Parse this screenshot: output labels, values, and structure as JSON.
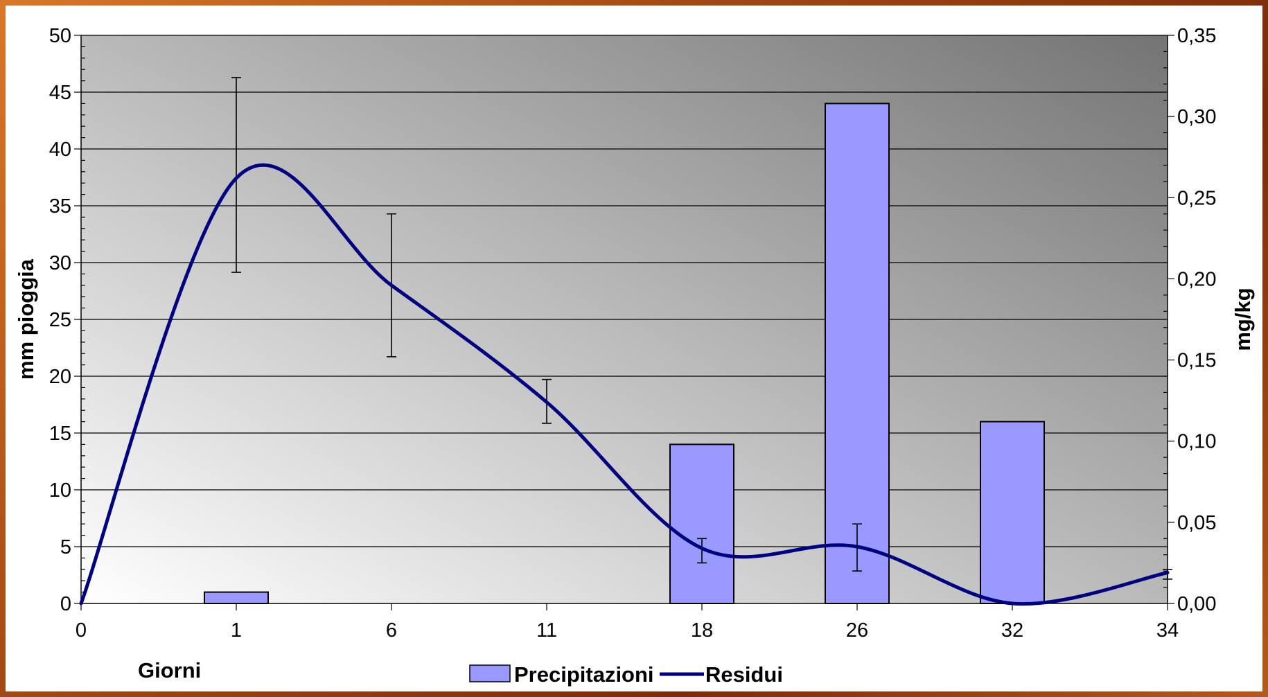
{
  "chart_data": {
    "type": "bar",
    "x_label": "Giorni",
    "categories": [
      "0",
      "1",
      "6",
      "11",
      "18",
      "26",
      "32",
      "34"
    ],
    "y_left_label": "mm pioggia",
    "y_left_ticks": [
      "0",
      "5",
      "10",
      "15",
      "20",
      "25",
      "30",
      "35",
      "40",
      "45",
      "50"
    ],
    "y_left_range": [
      0,
      50
    ],
    "y_right_label": "mg/kg",
    "y_right_ticks": [
      "0,00",
      "0,05",
      "0,10",
      "0,15",
      "0,20",
      "0,25",
      "0,30",
      "0,35"
    ],
    "y_right_range": [
      0,
      0.35
    ],
    "grid": true,
    "legend_position": "bottom",
    "series": [
      {
        "name": "Precipitazioni",
        "type": "bar",
        "axis": "left",
        "color": "#9999ff",
        "values": [
          0,
          1,
          0,
          0,
          14,
          44,
          16,
          0
        ]
      },
      {
        "name": "Residui",
        "type": "line",
        "axis": "right",
        "color": "#000080",
        "smooth": true,
        "values": [
          0,
          0.262,
          0.196,
          0.124,
          0.034,
          0.035,
          0.0,
          0.019
        ],
        "error_high": [
          null,
          0.324,
          0.24,
          0.138,
          0.04,
          0.049,
          null,
          0.021
        ],
        "error_low": [
          null,
          0.204,
          0.152,
          0.111,
          0.025,
          0.02,
          null,
          0.015
        ]
      }
    ]
  }
}
